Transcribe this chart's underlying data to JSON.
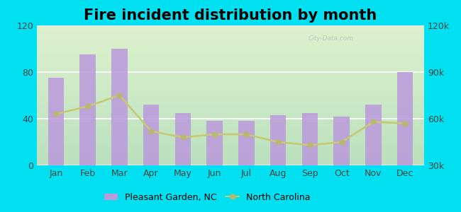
{
  "title": "Fire incident distribution by month",
  "months": [
    "Jan",
    "Feb",
    "Mar",
    "Apr",
    "May",
    "Jun",
    "Jul",
    "Aug",
    "Sep",
    "Oct",
    "Nov",
    "Dec"
  ],
  "bar_values": [
    75,
    95,
    100,
    52,
    45,
    38,
    38,
    43,
    45,
    42,
    52,
    80
  ],
  "line_values": [
    63000,
    68000,
    75000,
    52000,
    48000,
    50000,
    50000,
    45000,
    43000,
    45000,
    58000,
    57000
  ],
  "bar_color": "#bb99dd",
  "line_color": "#c8c86e",
  "line_marker_color": "#b8b870",
  "ylim_left": [
    0,
    120
  ],
  "ylim_right": [
    30000,
    120000
  ],
  "yticks_left": [
    0,
    40,
    80,
    120
  ],
  "yticks_right": [
    30000,
    60000,
    90000,
    120000
  ],
  "ytick_labels_right": [
    "30k",
    "60k",
    "90k",
    "120k"
  ],
  "legend_label_bar": "Pleasant Garden, NC",
  "legend_label_line": "North Carolina",
  "title_fontsize": 15,
  "tick_fontsize": 9,
  "legend_fontsize": 9,
  "watermark": "City-Data.com",
  "outer_bg": "#00e0f0"
}
